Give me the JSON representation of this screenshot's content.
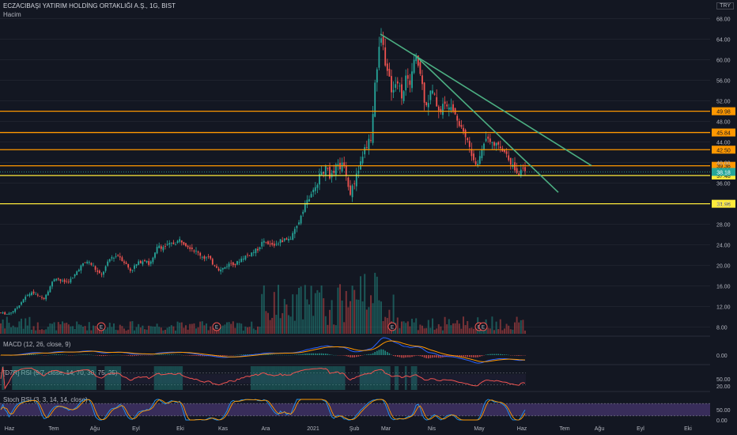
{
  "header": {
    "title": "ECZACIBAŞI YATIRIM HOLDİNG ORTAKLIĞI A.Ş., 1G, BIST",
    "volume_label": "Hacim",
    "currency": "TRY"
  },
  "panes": {
    "macd_title": "MACD (12, 26, close, 9)",
    "rsi_title": "[D7R] RSI (9/7, close, 14, 70, 30, 75, 25)",
    "stoch_title": "Stoch RSI (3, 3, 14, 14, close)",
    "macd_ticks": [
      "0.00"
    ],
    "rsi_ticks": [
      "50.00",
      "20.00"
    ],
    "stoch_ticks": [
      "50.00",
      "0.00"
    ]
  },
  "colors": {
    "background": "#131722",
    "up": "#26a69a",
    "down": "#ef5350",
    "trendline": "#4caf82",
    "orange_line": "#ff9800",
    "yellow_line": "#ffeb3b",
    "macd": "#2962ff",
    "signal": "#ff9800",
    "rsi_line": "#ef5350",
    "stoch_k": "#2196f3",
    "stoch_d": "#ff9800"
  },
  "chart_data": {
    "type": "candlestick",
    "y_ticks": [
      "68.00",
      "64.00",
      "60.00",
      "56.00",
      "52.00",
      "48.00",
      "44.00",
      "40.00",
      "36.00",
      "32.00",
      "28.00",
      "24.00",
      "20.00",
      "16.00",
      "12.00",
      "8.00"
    ],
    "x_ticks": [
      "Haz",
      "Tem",
      "Ağu",
      "Eyl",
      "Eki",
      "Kas",
      "Ara",
      "2021",
      "Şub",
      "Mar",
      "Nis",
      "May",
      "Haz",
      "Tem",
      "Ağu",
      "Eyl",
      "Eki"
    ],
    "horizontal_levels": [
      {
        "value": 49.98,
        "label": "49.98",
        "color": "#ff9800"
      },
      {
        "value": 45.84,
        "label": "45.84",
        "color": "#ff9800"
      },
      {
        "value": 42.5,
        "label": "42.50",
        "color": "#ff9800"
      },
      {
        "value": 39.36,
        "label": "39.36",
        "color": "#ff9800"
      },
      {
        "value": 37.48,
        "label": "37.48",
        "color": "#ffeb3b"
      },
      {
        "value": 31.98,
        "label": "31.98",
        "color": "#ffeb3b"
      }
    ],
    "last_price": {
      "value": 38.18,
      "label": "38.18"
    },
    "earnings_marker": "E",
    "price_path": [
      [
        0,
        10.8
      ],
      [
        10,
        10.5
      ],
      [
        20,
        11.5
      ],
      [
        30,
        13.5
      ],
      [
        40,
        14.8
      ],
      [
        48,
        14.0
      ],
      [
        55,
        13.5
      ],
      [
        63,
        15.8
      ],
      [
        70,
        17.8
      ],
      [
        78,
        16.8
      ],
      [
        85,
        16.8
      ],
      [
        92,
        17.5
      ],
      [
        100,
        19.5
      ],
      [
        110,
        20.8
      ],
      [
        117,
        20.0
      ],
      [
        124,
        18.5
      ],
      [
        128,
        18.0
      ],
      [
        133,
        19.5
      ],
      [
        140,
        21.5
      ],
      [
        150,
        22.0
      ],
      [
        158,
        20.5
      ],
      [
        165,
        19.0
      ],
      [
        170,
        19.8
      ],
      [
        178,
        20.8
      ],
      [
        185,
        21.2
      ],
      [
        188,
        20.2
      ],
      [
        192,
        20.8
      ],
      [
        196,
        22.2
      ],
      [
        200,
        24.0
      ],
      [
        205,
        23.5
      ],
      [
        210,
        23.8
      ],
      [
        218,
        24.2
      ],
      [
        223,
        24.5
      ],
      [
        228,
        25.0
      ],
      [
        232,
        24.5
      ],
      [
        238,
        23.8
      ],
      [
        244,
        23.2
      ],
      [
        249,
        22.5
      ],
      [
        254,
        22.0
      ],
      [
        258,
        21.5
      ],
      [
        264,
        21.5
      ],
      [
        268,
        20.5
      ],
      [
        273,
        20.0
      ],
      [
        278,
        19.0
      ],
      [
        283,
        19.5
      ],
      [
        287,
        20.0
      ],
      [
        293,
        20.5
      ],
      [
        298,
        20.2
      ],
      [
        303,
        21.0
      ],
      [
        307,
        21.5
      ],
      [
        313,
        22.0
      ],
      [
        319,
        22.5
      ],
      [
        325,
        23.0
      ],
      [
        332,
        24.5
      ],
      [
        340,
        24.0
      ],
      [
        347,
        24.0
      ],
      [
        352,
        24.5
      ],
      [
        358,
        25.0
      ],
      [
        364,
        25.0
      ],
      [
        369,
        25.5
      ],
      [
        374,
        27.0
      ],
      [
        378,
        28.5
      ],
      [
        382,
        30.5
      ],
      [
        386,
        32.0
      ],
      [
        390,
        33.0
      ],
      [
        394,
        33.5
      ],
      [
        398,
        35.0
      ],
      [
        402,
        36.5
      ],
      [
        406,
        38.0
      ],
      [
        410,
        38.5
      ],
      [
        414,
        39.0
      ],
      [
        418,
        37.0
      ],
      [
        422,
        38.0
      ],
      [
        426,
        39.5
      ],
      [
        430,
        39.0
      ],
      [
        434,
        40.0
      ],
      [
        438,
        38.0
      ],
      [
        442,
        33.5
      ],
      [
        446,
        35.5
      ],
      [
        450,
        37.0
      ],
      [
        454,
        39.0
      ],
      [
        458,
        41.0
      ],
      [
        462,
        43.0
      ],
      [
        466,
        44.0
      ],
      [
        470,
        45.0
      ],
      [
        474,
        56.0
      ],
      [
        478,
        59.0
      ],
      [
        481,
        65.0
      ],
      [
        485,
        62.0
      ],
      [
        489,
        58.0
      ],
      [
        493,
        55.5
      ],
      [
        497,
        53.0
      ],
      [
        501,
        57.0
      ],
      [
        505,
        54.5
      ],
      [
        509,
        53.0
      ],
      [
        513,
        56.5
      ],
      [
        517,
        55.0
      ],
      [
        521,
        57.5
      ],
      [
        525,
        60.5
      ],
      [
        529,
        59.0
      ],
      [
        533,
        56.0
      ],
      [
        537,
        52.0
      ],
      [
        541,
        51.5
      ],
      [
        545,
        54.0
      ],
      [
        549,
        53.0
      ],
      [
        553,
        51.0
      ],
      [
        557,
        50.0
      ],
      [
        561,
        51.5
      ],
      [
        565,
        50.5
      ],
      [
        569,
        52.0
      ],
      [
        573,
        51.0
      ],
      [
        577,
        49.0
      ],
      [
        581,
        47.5
      ],
      [
        585,
        46.5
      ],
      [
        589,
        45.0
      ],
      [
        593,
        43.5
      ],
      [
        597,
        41.0
      ],
      [
        601,
        39.5
      ],
      [
        605,
        40.0
      ],
      [
        609,
        42.5
      ],
      [
        613,
        44.5
      ],
      [
        617,
        45.0
      ],
      [
        621,
        44.5
      ],
      [
        625,
        44.0
      ],
      [
        629,
        43.0
      ],
      [
        633,
        42.5
      ],
      [
        637,
        42.0
      ],
      [
        641,
        42.0
      ],
      [
        645,
        40.5
      ],
      [
        649,
        39.0
      ],
      [
        653,
        38.0
      ],
      [
        657,
        37.8
      ],
      [
        661,
        38.5
      ],
      [
        665,
        38.2
      ]
    ]
  }
}
